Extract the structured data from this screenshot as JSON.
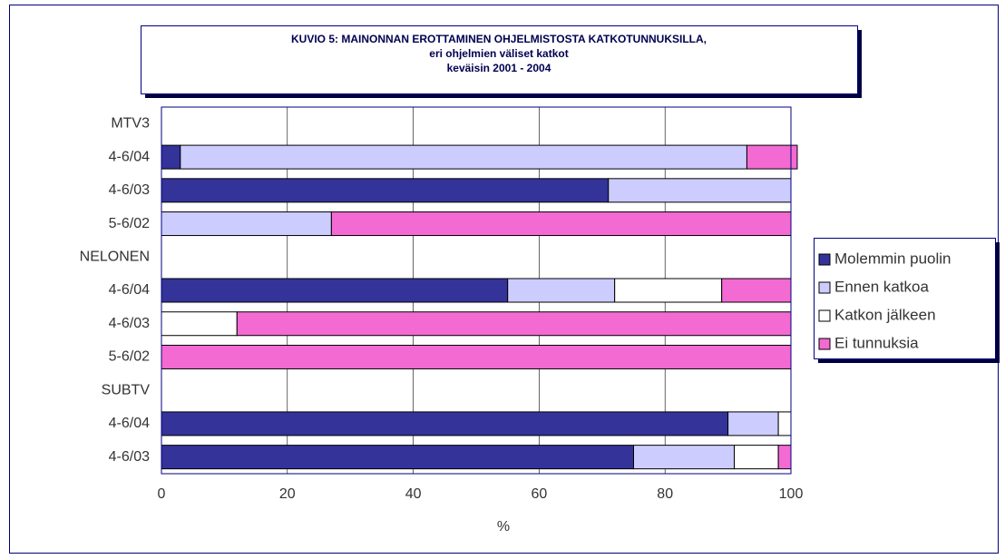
{
  "chart_data": {
    "type": "stacked-barh",
    "title": [
      "KUVIO 5: MAINONNAN EROTTAMINEN OHJELMISTOSTA KATKOTUNNUKSILLA,",
      "eri ohjelmien väliset katkot",
      "keväisin 2001 - 2004"
    ],
    "xlabel": "%",
    "categories": [
      "MTV3",
      "4-6/04",
      "4-6/03",
      "5-6/02",
      "NELONEN",
      "4-6/04",
      "4-6/03",
      "5-6/02",
      "SUBTV",
      "4-6/04",
      "4-6/03"
    ],
    "series": [
      {
        "name": "Molemmin puolin",
        "color": "#333399",
        "values": [
          null,
          3,
          71,
          0,
          null,
          55,
          0,
          0,
          null,
          90,
          75
        ]
      },
      {
        "name": "Ennen katkoa",
        "color": "#ccccff",
        "values": [
          null,
          90,
          29,
          27,
          null,
          17,
          0,
          0,
          null,
          8,
          16
        ]
      },
      {
        "name": "Katkon jälkeen",
        "color": "#ffffff",
        "values": [
          null,
          0,
          0,
          0,
          null,
          17,
          12,
          0,
          null,
          2,
          7
        ]
      },
      {
        "name": "Ei tunnuksia",
        "color": "#f36ad2",
        "values": [
          null,
          8,
          0,
          73,
          null,
          11,
          88,
          100,
          null,
          0,
          2
        ]
      }
    ],
    "xlim": [
      0,
      100
    ],
    "xticks": [
      0,
      20,
      40,
      60,
      80,
      100
    ],
    "grid": true,
    "legend": "right"
  }
}
